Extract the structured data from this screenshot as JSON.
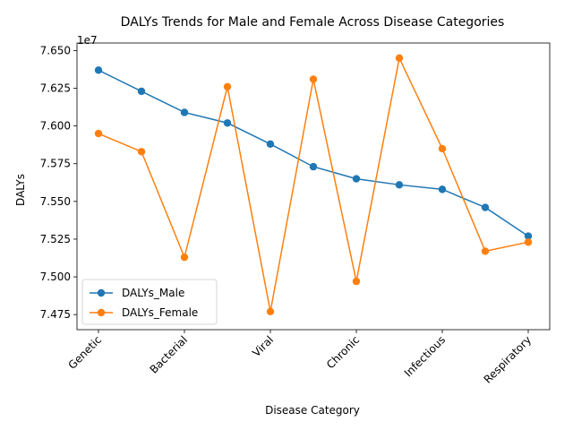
{
  "chart_data": {
    "type": "line",
    "title": "DALYs Trends for Male and Female Across Disease Categories",
    "xlabel": "Disease Category",
    "ylabel": "DALYs",
    "y_offset_label": "1e7",
    "x_tick_labels": [
      "Genetic",
      "Bacterial",
      "Viral",
      "Chronic",
      "Infectious",
      "Respiratory"
    ],
    "x_tick_positions": [
      0,
      2,
      4,
      6,
      8,
      10
    ],
    "ylim": [
      7.465,
      7.655
    ],
    "y_ticks": [
      7.475,
      7.5,
      7.525,
      7.55,
      7.575,
      7.6,
      7.625,
      7.65
    ],
    "y_tick_labels": [
      "7.475",
      "7.500",
      "7.525",
      "7.550",
      "7.575",
      "7.600",
      "7.625",
      "7.650"
    ],
    "x": [
      0,
      1,
      2,
      3,
      4,
      5,
      6,
      7,
      8,
      9,
      10
    ],
    "grid": false,
    "legend_position": "lower-left",
    "series": [
      {
        "name": "DALYs_Male",
        "color": "#1f77b4",
        "values": [
          7.637,
          7.623,
          7.609,
          7.602,
          7.588,
          7.573,
          7.565,
          7.561,
          7.558,
          7.546,
          7.527
        ]
      },
      {
        "name": "DALYs_Female",
        "color": "#ff7f0e",
        "values": [
          7.595,
          7.583,
          7.513,
          7.626,
          7.477,
          7.631,
          7.497,
          7.645,
          7.585,
          7.517,
          7.523
        ]
      }
    ]
  }
}
